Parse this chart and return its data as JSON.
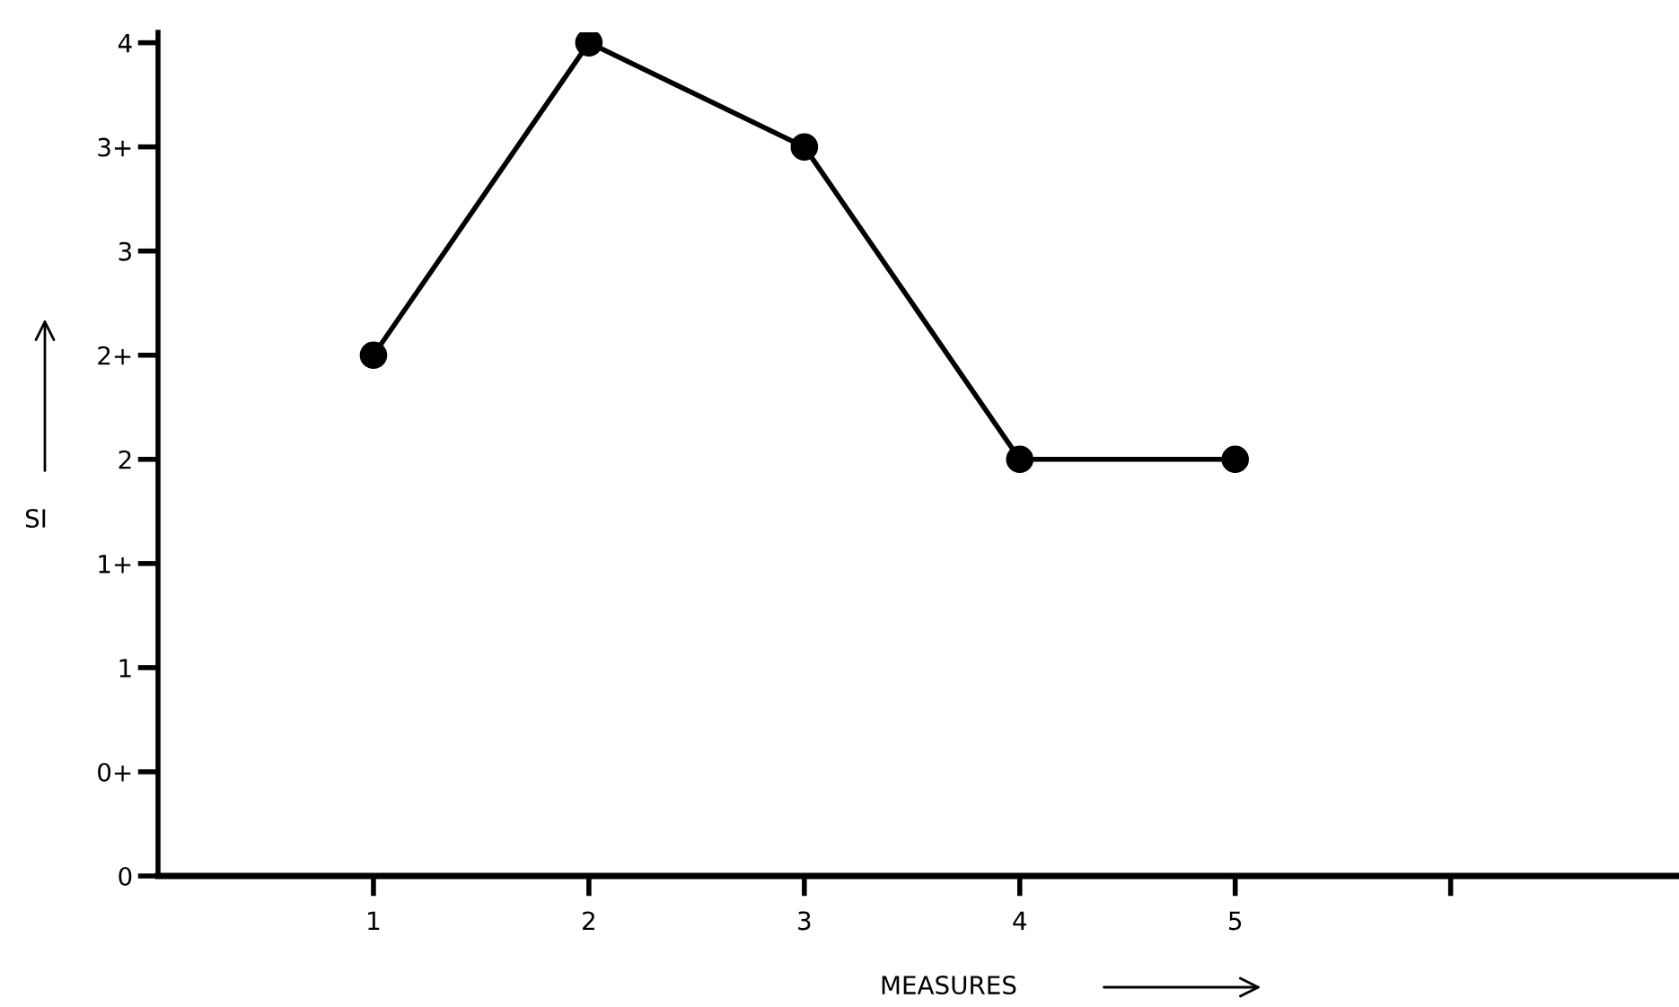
{
  "chart_data": {
    "type": "line",
    "xlabel": "MEASURES",
    "ylabel": "SI",
    "x": [
      1,
      2,
      3,
      4,
      5
    ],
    "series": [
      {
        "color": "#000000",
        "values": [
          2.5,
          4,
          3.5,
          2,
          2
        ]
      }
    ],
    "marker": "circle",
    "line_style": "solid",
    "grid": false,
    "legend": false,
    "xlim": [
      0,
      7.06
    ],
    "xticks": [
      1,
      2,
      3,
      4,
      5,
      {
        "value": 6,
        "label": null
      }
    ],
    "ylim": [
      0,
      4.05
    ],
    "yticks": [
      0,
      {
        "value": 0.5,
        "label": "0+"
      },
      1,
      {
        "value": 1.5,
        "label": "1+"
      },
      2,
      {
        "value": 2.5,
        "label": "2+"
      },
      3,
      {
        "value": 3.5,
        "label": "3+"
      },
      4
    ]
  }
}
